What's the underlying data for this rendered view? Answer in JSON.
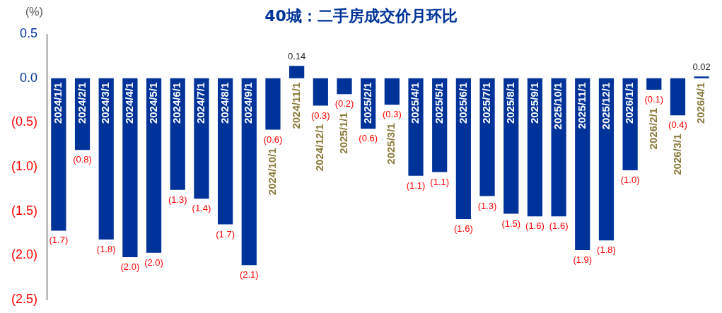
{
  "chart_data": {
    "type": "bar",
    "title": "40城：二手房成交价月环比",
    "ylabel": "(%)",
    "categories": [
      "2024/1/1",
      "2024/2/1",
      "2024/3/1",
      "2024/4/1",
      "2024/5/1",
      "2024/6/1",
      "2024/7/1",
      "2024/8/1",
      "2024/9/1",
      "2024/10/1",
      "2024/11/1",
      "2024/12/1",
      "2025/1/1",
      "2025/2/1",
      "2025/3/1",
      "2025/4/1",
      "2025/5/1",
      "2025/6/1",
      "2025/7/1",
      "2025/8/1",
      "2025/9/1",
      "2025/10/1",
      "2025/11/1",
      "2025/12/1",
      "2026/1/1",
      "2026/2/1",
      "2026/3/1",
      "2026/4/1"
    ],
    "values": [
      -1.72,
      -0.81,
      -1.82,
      -2.02,
      -1.97,
      -1.26,
      -1.36,
      -1.65,
      -2.11,
      -0.58,
      0.14,
      -0.31,
      -0.18,
      -0.57,
      -0.3,
      -1.1,
      -1.06,
      -1.59,
      -1.33,
      -1.53,
      -1.56,
      -1.56,
      -1.94,
      -1.83,
      -1.04,
      -0.13,
      -0.42,
      0.02
    ],
    "value_labels": [
      "(1.7)",
      "(0.8)",
      "(1.8)",
      "(2.0)",
      "(2.0)",
      "(1.3)",
      "(1.4)",
      "(1.7)",
      "(2.1)",
      "(0.6)",
      "0.14",
      "(0.3)",
      "(0.2)",
      "(0.6)",
      "(0.3)",
      "(1.1)",
      "(1.1)",
      "(1.6)",
      "(1.3)",
      "(1.5)",
      "(1.6)",
      "(1.6)",
      "(1.9)",
      "(1.8)",
      "(1.0)",
      "(0.1)",
      "(0.4)",
      "0.02"
    ],
    "color": "#003399",
    "ylim": [
      -2.5,
      0.5
    ],
    "yticks": [
      {
        "value": 0.5,
        "label": "0.5"
      },
      {
        "value": 0,
        "label": "0.0"
      },
      {
        "value": -0.5,
        "label": "(0.5)"
      },
      {
        "value": -1,
        "label": "(1.0)"
      },
      {
        "value": -1.5,
        "label": "(1.5)"
      },
      {
        "value": -2,
        "label": "(2.0)"
      },
      {
        "value": -2.5,
        "label": "(2.5)"
      }
    ],
    "grid": false,
    "legend": false
  }
}
